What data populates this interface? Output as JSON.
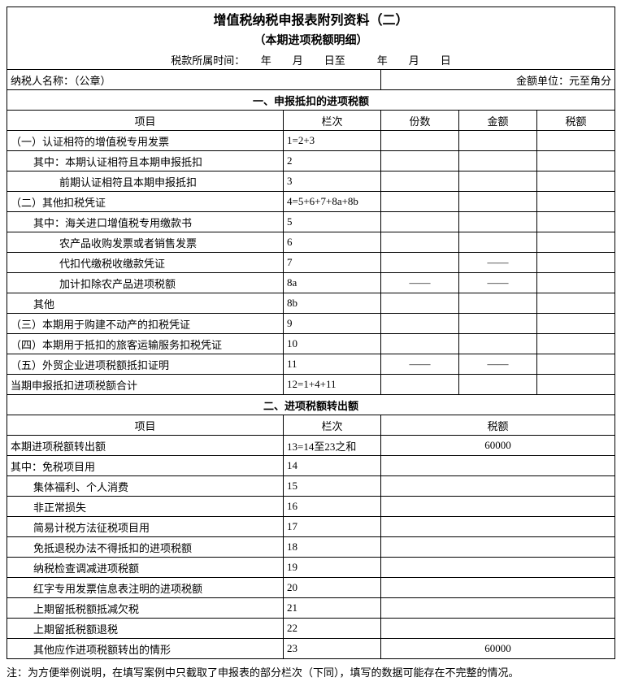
{
  "title": "增值税纳税申报表附列资料（二）",
  "subtitle": "（本期进项税额明细）",
  "period_label": "税款所属时间：　　年　　月　　日至　　　年　　月　　日",
  "taxpayer_label": "纳税人名称：（公章）",
  "unit_label": "金额单位：元至角分",
  "section1_title": "一、申报抵扣的进项税额",
  "headers": {
    "item": "项目",
    "col_no": "栏次",
    "count": "份数",
    "amount": "金额",
    "tax": "税额"
  },
  "rows1": [
    {
      "item": "（一）认证相符的增值税专用发票",
      "col": "1=2+3",
      "count": "",
      "amount": "",
      "tax": "",
      "indent": 0
    },
    {
      "item": "其中：本期认证相符且本期申报抵扣",
      "col": "2",
      "count": "",
      "amount": "",
      "tax": "",
      "indent": 1
    },
    {
      "item": "前期认证相符且本期申报抵扣",
      "col": "3",
      "count": "",
      "amount": "",
      "tax": "",
      "indent": 2
    },
    {
      "item": "（二）其他扣税凭证",
      "col": "4=5+6+7+8a+8b",
      "count": "",
      "amount": "",
      "tax": "",
      "indent": 0
    },
    {
      "item": "其中：海关进口增值税专用缴款书",
      "col": "5",
      "count": "",
      "amount": "",
      "tax": "",
      "indent": 1
    },
    {
      "item": "农产品收购发票或者销售发票",
      "col": "6",
      "count": "",
      "amount": "",
      "tax": "",
      "indent": 2
    },
    {
      "item": "代扣代缴税收缴款凭证",
      "col": "7",
      "count": "",
      "amount": "——",
      "tax": "",
      "indent": 2
    },
    {
      "item": "加计扣除农产品进项税额",
      "col": "8a",
      "count": "——",
      "amount": "——",
      "tax": "",
      "indent": 2
    },
    {
      "item": "其他",
      "col": "8b",
      "count": "",
      "amount": "",
      "tax": "",
      "indent": 1
    },
    {
      "item": "（三）本期用于购建不动产的扣税凭证",
      "col": "9",
      "count": "",
      "amount": "",
      "tax": "",
      "indent": 0
    },
    {
      "item": "（四）本期用于抵扣的旅客运输服务扣税凭证",
      "col": "10",
      "count": "",
      "amount": "",
      "tax": "",
      "indent": 0
    },
    {
      "item": "（五）外贸企业进项税额抵扣证明",
      "col": "11",
      "count": "——",
      "amount": "——",
      "tax": "",
      "indent": 0
    },
    {
      "item": "当期申报抵扣进项税额合计",
      "col": "12=1+4+11",
      "count": "",
      "amount": "",
      "tax": "",
      "indent": 0
    }
  ],
  "section2_title": "二、进项税额转出额",
  "rows2": [
    {
      "item": "本期进项税额转出额",
      "col": "13=14至23之和",
      "tax": "60000",
      "indent": 0
    },
    {
      "item": "其中：免税项目用",
      "col": "14",
      "tax": "",
      "indent": 0
    },
    {
      "item": "集体福利、个人消费",
      "col": "15",
      "tax": "",
      "indent": 1
    },
    {
      "item": "非正常损失",
      "col": "16",
      "tax": "",
      "indent": 1
    },
    {
      "item": "简易计税方法征税项目用",
      "col": "17",
      "tax": "",
      "indent": 1
    },
    {
      "item": "免抵退税办法不得抵扣的进项税额",
      "col": "18",
      "tax": "",
      "indent": 1
    },
    {
      "item": "纳税检查调减进项税额",
      "col": "19",
      "tax": "",
      "indent": 1
    },
    {
      "item": "红字专用发票信息表注明的进项税额",
      "col": "20",
      "tax": "",
      "indent": 1
    },
    {
      "item": "上期留抵税额抵减欠税",
      "col": "21",
      "tax": "",
      "indent": 1
    },
    {
      "item": "上期留抵税额退税",
      "col": "22",
      "tax": "",
      "indent": 1
    },
    {
      "item": "其他应作进项税额转出的情形",
      "col": "23",
      "tax": "60000",
      "indent": 1
    }
  ],
  "note": "注：为方便举例说明，在填写案例中只截取了申报表的部分栏次（下同），填写的数据可能存在不完整的情况。"
}
